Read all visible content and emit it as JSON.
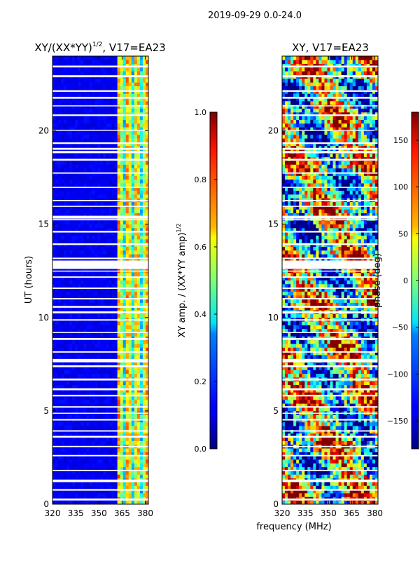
{
  "chart_data": [
    {
      "type": "heatmap",
      "suptitle": "2019-09-29 0.0-24.0",
      "title": "XY/(XX*YY)",
      "title_exponent": "1/2",
      "title_suffix": ", V17=EA23",
      "ylabel": "UT (hours)",
      "xlim": [
        320,
        382
      ],
      "ylim": [
        0,
        24
      ],
      "xticks": [
        "320",
        "335",
        "350",
        "365",
        "380"
      ],
      "yticks": [
        "0",
        "5",
        "10",
        "15",
        "20"
      ],
      "colormap": "jet",
      "colorbar": {
        "label": "XY amp. / (XX*YY amp)",
        "label_exponent": "1/2",
        "range": [
          0.0,
          1.0
        ],
        "ticks": [
          "0.0",
          "0.2",
          "0.4",
          "0.6",
          "0.8",
          "1.0"
        ]
      }
    },
    {
      "type": "heatmap",
      "title": "XY, V17=EA23",
      "xlabel": "frequency (MHz)",
      "xlim": [
        320,
        382
      ],
      "ylim": [
        0,
        24
      ],
      "xticks": [
        "320",
        "335",
        "350",
        "365",
        "380"
      ],
      "yticks": [
        "0",
        "5",
        "10",
        "15",
        "20"
      ],
      "colormap": "jet",
      "colorbar": {
        "label": "phase (deg)",
        "range": [
          -180,
          180
        ],
        "ticks": [
          "−150",
          "−100",
          "−50",
          "0",
          "50",
          "100",
          "150"
        ]
      }
    }
  ]
}
